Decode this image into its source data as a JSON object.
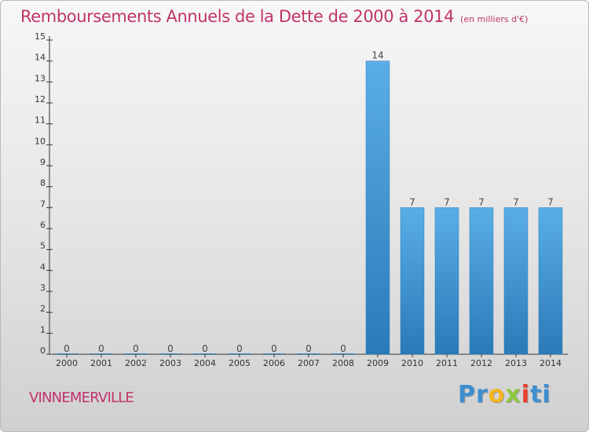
{
  "title": "Remboursements Annuels de la Dette de 2000 à 2014",
  "unit_note": "(en milliers d'€)",
  "commune": "VINNEMERVILLE",
  "logo": {
    "letters": [
      "P",
      "r",
      "o",
      "x",
      "i",
      "t",
      "i"
    ],
    "colors": [
      "#3d8fd1",
      "#3d8fd1",
      "#f2b51c",
      "#8dc63f",
      "#e8402a",
      "#3d8fd1",
      "#3d8fd1"
    ]
  },
  "colors": {
    "title": "#c0346b",
    "bar_light": "#5aaee6",
    "bar_dark": "#2a7ab8",
    "axis": "#333333"
  },
  "chart_data": {
    "type": "bar",
    "categories": [
      "2000",
      "2001",
      "2002",
      "2003",
      "2004",
      "2005",
      "2006",
      "2007",
      "2008",
      "2009",
      "2010",
      "2011",
      "2012",
      "2013",
      "2014"
    ],
    "values": [
      0,
      0,
      0,
      0,
      0,
      0,
      0,
      0,
      0,
      14,
      7,
      7,
      7,
      7,
      7
    ],
    "ylim": [
      0,
      15
    ],
    "yticks": [
      0,
      1,
      2,
      3,
      4,
      5,
      6,
      7,
      8,
      9,
      10,
      11,
      12,
      13,
      14,
      15
    ],
    "grid": false,
    "legend": "none"
  }
}
